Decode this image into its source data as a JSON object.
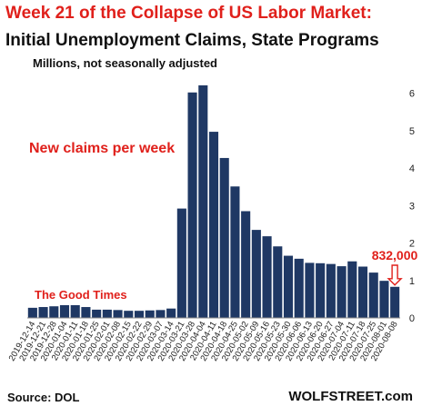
{
  "title": "Week 21 of the Collapse of US Labor Market:",
  "subtitle": "Initial Unemployment Claims, State Programs",
  "units": "Millions, not seasonally adjusted",
  "source": "Source: DOL",
  "brand": "WOLFSTREET.com",
  "colors": {
    "bar": "#1f3864",
    "accent": "#e0201b",
    "text": "#111111"
  },
  "chart_data": {
    "type": "bar",
    "title": "Week 21 of the Collapse of US Labor Market: Initial Unemployment Claims, State Programs",
    "ylabel": "Millions, not seasonally adjusted",
    "ylim": [
      0,
      6.5
    ],
    "yticks": [
      0,
      1,
      2,
      3,
      4,
      5,
      6
    ],
    "grid": false,
    "categories": [
      "2019-12-14",
      "2019-12-21",
      "2019-12-28",
      "2020-01-04",
      "2020-01-11",
      "2020-01-18",
      "2020-01-25",
      "2020-02-01",
      "2020-02-08",
      "2020-02-15",
      "2020-02-22",
      "2020-02-29",
      "2020-03-07",
      "2020-03-14",
      "2020-03-21",
      "2020-03-28",
      "2020-04-04",
      "2020-04-11",
      "2020-04-18",
      "2020-04-25",
      "2020-05-02",
      "2020-05-09",
      "2020-05-16",
      "2020-05-23",
      "2020-05-30",
      "2020-06-06",
      "2020-06-13",
      "2020-06-20",
      "2020-06-27",
      "2020-07-04",
      "2020-07-11",
      "2020-07-18",
      "2020-07-25",
      "2020-08-01",
      "2020-08-08"
    ],
    "values": [
      0.27,
      0.29,
      0.31,
      0.34,
      0.34,
      0.29,
      0.22,
      0.22,
      0.21,
      0.19,
      0.19,
      0.2,
      0.21,
      0.25,
      2.92,
      6.02,
      6.21,
      4.97,
      4.27,
      3.51,
      2.85,
      2.35,
      2.18,
      1.91,
      1.66,
      1.58,
      1.47,
      1.46,
      1.44,
      1.38,
      1.51,
      1.37,
      1.21,
      0.99,
      0.83
    ],
    "annotations": [
      {
        "text": "New claims per week"
      },
      {
        "text": "The Good Times"
      },
      {
        "text": "832,000",
        "category": "2020-08-08"
      }
    ]
  }
}
